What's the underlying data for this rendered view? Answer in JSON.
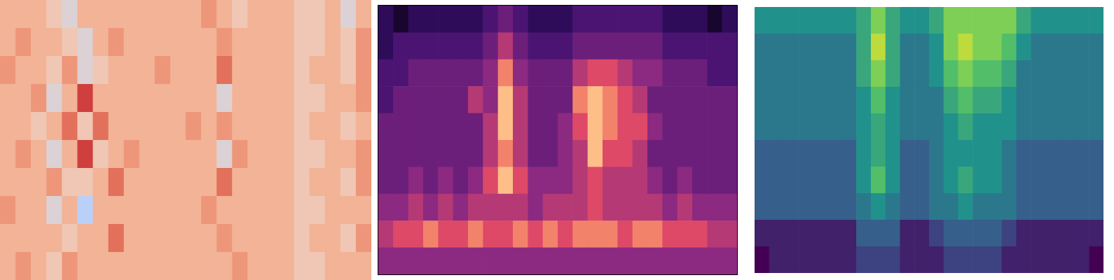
{
  "chart_data": [
    {
      "type": "heatmap",
      "color": "coolwarm",
      "tick_labels": false,
      "zlim": [
        0,
        10
      ],
      "cells": [
        [
          6,
          6,
          6,
          5,
          4,
          6,
          6,
          6,
          6,
          6,
          6,
          6,
          6,
          7,
          6,
          5,
          6,
          6,
          6,
          5,
          5,
          6,
          4,
          6
        ],
        [
          6,
          7,
          6,
          6,
          5,
          4,
          6,
          7,
          6,
          6,
          6,
          6,
          6,
          6,
          7,
          6,
          6,
          6,
          6,
          5,
          5,
          6,
          5,
          7
        ],
        [
          7,
          6,
          6,
          5,
          7,
          4,
          5,
          6,
          6,
          6,
          7,
          6,
          6,
          6,
          8,
          6,
          6,
          6,
          6,
          5,
          6,
          6,
          5,
          7
        ],
        [
          6,
          6,
          7,
          4,
          6,
          9,
          6,
          6,
          6,
          6,
          6,
          6,
          6,
          6,
          4,
          6,
          6,
          6,
          6,
          5,
          5,
          6,
          6,
          7
        ],
        [
          6,
          6,
          5,
          6,
          8,
          5,
          8,
          6,
          6,
          6,
          6,
          6,
          7,
          6,
          7,
          6,
          6,
          6,
          6,
          5,
          6,
          6,
          5,
          6
        ],
        [
          6,
          7,
          6,
          4,
          6,
          9,
          5,
          6,
          7,
          6,
          6,
          6,
          6,
          6,
          4,
          7,
          6,
          6,
          6,
          5,
          5,
          6,
          6,
          7
        ],
        [
          6,
          6,
          6,
          7,
          5,
          5,
          6,
          8,
          6,
          6,
          6,
          6,
          6,
          6,
          8,
          6,
          6,
          6,
          6,
          5,
          6,
          6,
          5,
          7
        ],
        [
          7,
          6,
          6,
          4,
          6,
          3,
          6,
          6,
          6,
          6,
          6,
          6,
          6,
          7,
          6,
          6,
          6,
          6,
          6,
          5,
          5,
          6,
          6,
          6
        ],
        [
          6,
          6,
          6,
          6,
          5,
          6,
          6,
          8,
          6,
          6,
          6,
          6,
          6,
          6,
          7,
          6,
          6,
          6,
          6,
          5,
          6,
          6,
          5,
          7
        ],
        [
          6,
          7,
          6,
          5,
          7,
          6,
          6,
          6,
          6,
          6,
          6,
          6,
          6,
          6,
          6,
          7,
          6,
          6,
          6,
          5,
          5,
          6,
          6,
          6
        ]
      ]
    },
    {
      "type": "heatmap",
      "color": "magma",
      "tick_labels": false,
      "zlim": [
        0,
        10
      ],
      "cells": [
        [
          2,
          1,
          2,
          2,
          2,
          2,
          2,
          3,
          4,
          3,
          2,
          2,
          2,
          3,
          3,
          3,
          3,
          3,
          3,
          2,
          2,
          2,
          1,
          2
        ],
        [
          2,
          3,
          3,
          3,
          3,
          3,
          3,
          4,
          6,
          4,
          3,
          3,
          3,
          4,
          4,
          4,
          4,
          4,
          4,
          3,
          3,
          3,
          3,
          3
        ],
        [
          3,
          3,
          4,
          4,
          4,
          4,
          4,
          5,
          8,
          5,
          4,
          4,
          4,
          6,
          7,
          7,
          6,
          5,
          5,
          4,
          4,
          4,
          3,
          3
        ],
        [
          3,
          4,
          4,
          4,
          4,
          4,
          6,
          5,
          9,
          6,
          4,
          4,
          4,
          8,
          9,
          8,
          7,
          6,
          4,
          4,
          4,
          4,
          4,
          4
        ],
        [
          4,
          4,
          4,
          4,
          4,
          4,
          4,
          6,
          9,
          6,
          4,
          4,
          5,
          7,
          9,
          8,
          7,
          7,
          5,
          4,
          4,
          4,
          4,
          4
        ],
        [
          4,
          4,
          4,
          4,
          4,
          4,
          4,
          6,
          8,
          6,
          4,
          4,
          5,
          6,
          9,
          7,
          7,
          6,
          4,
          4,
          4,
          4,
          4,
          4
        ],
        [
          4,
          4,
          5,
          4,
          5,
          4,
          5,
          7,
          9,
          7,
          5,
          5,
          5,
          6,
          7,
          6,
          6,
          6,
          5,
          4,
          5,
          4,
          4,
          4
        ],
        [
          5,
          5,
          6,
          5,
          6,
          5,
          6,
          6,
          6,
          6,
          5,
          6,
          6,
          6,
          7,
          6,
          6,
          6,
          6,
          5,
          6,
          5,
          5,
          5
        ],
        [
          6,
          7,
          7,
          8,
          7,
          7,
          8,
          7,
          7,
          8,
          7,
          8,
          7,
          8,
          8,
          8,
          7,
          8,
          8,
          7,
          7,
          7,
          6,
          6
        ],
        [
          5,
          5,
          5,
          5,
          5,
          5,
          5,
          5,
          5,
          5,
          5,
          5,
          5,
          5,
          5,
          5,
          5,
          5,
          5,
          5,
          5,
          5,
          5,
          5
        ]
      ]
    },
    {
      "type": "heatmap",
      "color": "viridis",
      "tick_labels": false,
      "zlim": [
        0,
        10
      ],
      "cells": [
        [
          5,
          5,
          5,
          5,
          5,
          5,
          5,
          6,
          8,
          6,
          5,
          5,
          6,
          8,
          8,
          8,
          8,
          8,
          6,
          5,
          5,
          5,
          5,
          5
        ],
        [
          4,
          4,
          4,
          4,
          4,
          4,
          4,
          6,
          9,
          6,
          4,
          4,
          5,
          8,
          9,
          8,
          8,
          7,
          5,
          4,
          4,
          4,
          4,
          4
        ],
        [
          4,
          4,
          4,
          4,
          4,
          4,
          4,
          6,
          8,
          6,
          4,
          4,
          5,
          7,
          8,
          7,
          7,
          6,
          4,
          4,
          4,
          4,
          4,
          4
        ],
        [
          4,
          4,
          4,
          4,
          4,
          4,
          4,
          5,
          7,
          5,
          4,
          4,
          4,
          6,
          7,
          6,
          6,
          5,
          4,
          4,
          4,
          4,
          4,
          4
        ],
        [
          4,
          4,
          4,
          4,
          4,
          4,
          4,
          5,
          6,
          5,
          4,
          4,
          4,
          5,
          6,
          5,
          5,
          5,
          4,
          4,
          4,
          4,
          4,
          4
        ],
        [
          3,
          3,
          3,
          3,
          3,
          3,
          3,
          5,
          6,
          5,
          3,
          3,
          4,
          5,
          5,
          5,
          5,
          4,
          3,
          3,
          3,
          3,
          3,
          3
        ],
        [
          3,
          3,
          3,
          3,
          3,
          3,
          3,
          5,
          7,
          5,
          3,
          3,
          4,
          5,
          6,
          5,
          5,
          4,
          3,
          3,
          3,
          3,
          3,
          3
        ],
        [
          3,
          3,
          3,
          3,
          3,
          3,
          3,
          4,
          5,
          4,
          3,
          3,
          4,
          4,
          5,
          4,
          4,
          4,
          3,
          3,
          3,
          3,
          3,
          3
        ],
        [
          1,
          1,
          1,
          1,
          1,
          1,
          1,
          3,
          3,
          3,
          1,
          1,
          2,
          3,
          3,
          3,
          3,
          2,
          1,
          1,
          1,
          1,
          1,
          1
        ],
        [
          0,
          1,
          1,
          1,
          1,
          1,
          1,
          2,
          2,
          2,
          1,
          1,
          1,
          2,
          2,
          2,
          2,
          1,
          1,
          1,
          1,
          1,
          1,
          0
        ]
      ]
    }
  ]
}
